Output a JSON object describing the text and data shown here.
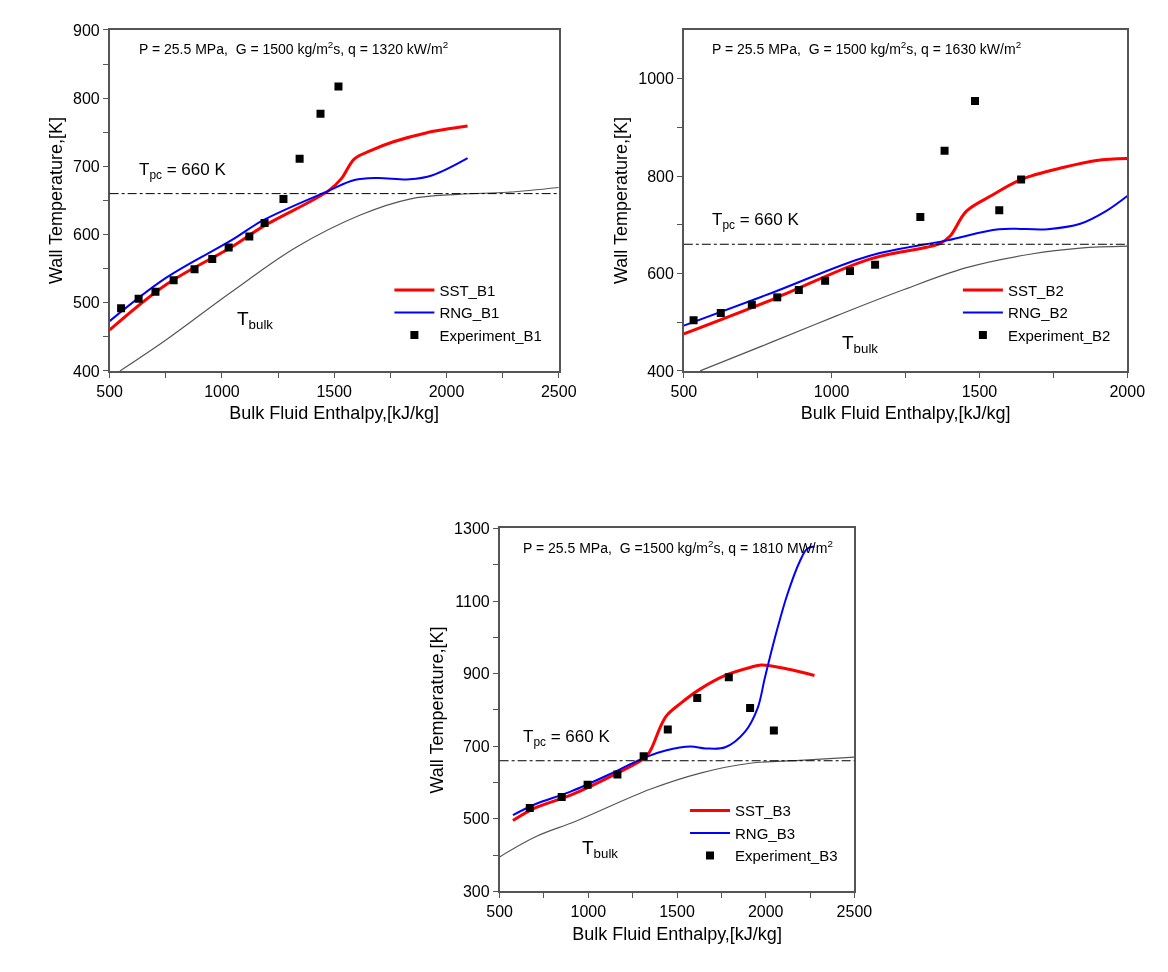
{
  "chart_data": [
    {
      "type": "line",
      "xlabel": "Bulk Fluid Enthalpy,[kJ/kg]",
      "ylabel": "Wall Temperature,[K]",
      "xlim": [
        500,
        2500
      ],
      "ylim": [
        400,
        900
      ],
      "xticks": [
        500,
        {
          "value": 750,
          "label": null
        },
        1000,
        {
          "value": 1250,
          "label": null
        },
        1500,
        {
          "value": 1750,
          "label": null
        },
        2000,
        {
          "value": 2250,
          "label": null
        },
        2500
      ],
      "yticks": [
        400,
        {
          "value": 450,
          "label": null
        },
        500,
        {
          "value": 550,
          "label": null
        },
        600,
        {
          "value": 650,
          "label": null
        },
        700,
        {
          "value": 750,
          "label": null
        },
        800,
        {
          "value": 850,
          "label": null
        },
        900
      ],
      "legend": "bottom right",
      "annotations": [
        "P = 25.5 MPa,  G = 1500 kg/m$^{2}$s, q = 1320 kW/m$^{2}$"
      ],
      "ref_lines": [
        {
          "axis": "y",
          "value": 660,
          "label": "T$_{pc}$ = 660 K",
          "color": "#000000",
          "line_style": "dashdot"
        }
      ],
      "series": [
        {
          "name": "Experiment_B1",
          "type": "scatter",
          "marker": "square",
          "color": "#000000",
          "x": [
            551,
            629,
            704,
            785,
            878,
            957,
            1030,
            1122,
            1190,
            1274,
            1346,
            1439,
            1519
          ],
          "values": [
            492,
            506,
            516,
            533,
            549,
            564,
            581,
            597,
            617,
            652,
            711,
            777,
            817
          ]
        },
        {
          "name": "SST_B1",
          "marker": "none",
          "color": "#ff0000",
          "x": [
            500,
            749,
            1039,
            1184,
            1474,
            1532,
            1590,
            1662,
            1764,
            1909,
            2094
          ],
          "values": [
            460,
            526,
            581,
            612,
            664,
            682,
            711,
            723,
            736,
            749,
            759
          ]
        },
        {
          "name": "RNG_B1",
          "marker": "none",
          "color": "#0000ff",
          "x": [
            500,
            749,
            1039,
            1184,
            1474,
            1590,
            1691,
            1836,
            1938,
            2094
          ],
          "values": [
            473,
            536,
            591,
            621,
            664,
            680,
            683,
            681,
            687,
            712
          ]
        },
        {
          "name": "T$_{bulk}$",
          "marker": "none",
          "color": "#555555",
          "x": [
            546,
            749,
            1039,
            1329,
            1619,
            1836,
            2054,
            2271,
            2500
          ],
          "values": [
            400,
            445,
            515,
            581,
            629,
            652,
            659,
            662,
            669
          ]
        }
      ]
    },
    {
      "type": "line",
      "xlabel": "Bulk Fluid Enthalpy,[kJ/kg]",
      "ylabel": "Wall Temperature,[K]",
      "xlim": [
        500,
        2000
      ],
      "ylim": [
        400,
        1100
      ],
      "xticks": [
        500,
        {
          "value": 750,
          "label": null
        },
        1000,
        {
          "value": 1250,
          "label": null
        },
        1500,
        {
          "value": 1750,
          "label": null
        },
        2000
      ],
      "yticks": [
        400,
        {
          "value": 500,
          "label": null
        },
        600,
        {
          "value": 700,
          "label": null
        },
        800,
        {
          "value": 900,
          "label": null
        },
        1000
      ],
      "legend": "bottom right",
      "annotations": [
        "P = 25.5 MPa,  G = 1500 kg/m$^{2}$s, q = 1630 kW/m$^{2}$"
      ],
      "ref_lines": [
        {
          "axis": "y",
          "value": 660,
          "label": "T$_{pc}$ = 660 K",
          "color": "#000000",
          "line_style": "dashdot"
        }
      ],
      "series": [
        {
          "name": "Experiment_B2",
          "type": "scatter",
          "marker": "square",
          "color": "#000000",
          "x": [
            533,
            625,
            730,
            816,
            889,
            978,
            1062,
            1147,
            1300,
            1382,
            1485,
            1567,
            1641
          ],
          "values": [
            504,
            519,
            536,
            551,
            566,
            585,
            605,
            618,
            716,
            852,
            954,
            730,
            793
          ]
        },
        {
          "name": "SST_B2",
          "marker": "none",
          "color": "#ff0000",
          "x": [
            500,
            797,
            1126,
            1368,
            1401,
            1456,
            1544,
            1641,
            1786,
            1896,
            2000
          ],
          "values": [
            476,
            546,
            629,
            662,
            677,
            728,
            761,
            793,
            818,
            832,
            836
          ]
        },
        {
          "name": "RNG_B2",
          "marker": "none",
          "color": "#0000ff",
          "x": [
            500,
            797,
            1126,
            1390,
            1566,
            1731,
            1841,
            1928,
            2000
          ],
          "values": [
            493,
            560,
            636,
            668,
            691,
            691,
            702,
            728,
            759
          ]
        },
        {
          "name": "T$_{bulk}$",
          "marker": "none",
          "color": "#555555",
          "x": [
            555,
            797,
            1016,
            1236,
            1456,
            1676,
            1841,
            2000
          ],
          "values": [
            400,
            459,
            513,
            565,
            612,
            640,
            652,
            656
          ]
        }
      ]
    },
    {
      "type": "line",
      "xlabel": "Bulk Fluid Enthalpy,[kJ/kg]",
      "ylabel": "Wall Temperature,[K]",
      "xlim": [
        500,
        2500
      ],
      "ylim": [
        300,
        1300
      ],
      "xticks": [
        500,
        {
          "value": 750,
          "label": null
        },
        1000,
        {
          "value": 1250,
          "label": null
        },
        1500,
        {
          "value": 1750,
          "label": null
        },
        2000,
        {
          "value": 2250,
          "label": null
        },
        2500
      ],
      "yticks": [
        300,
        {
          "value": 400,
          "label": null
        },
        500,
        {
          "value": 600,
          "label": null
        },
        700,
        {
          "value": 800,
          "label": null
        },
        900,
        {
          "value": 1000,
          "label": null
        },
        1100,
        {
          "value": 1200,
          "label": null
        },
        1300
      ],
      "legend": "bottom right",
      "annotations": [
        "P = 25.5 MPa,  G =1500 kg/m$^{2}$s, q = 1810 MW/m$^{2}$"
      ],
      "ref_lines": [
        {
          "axis": "y",
          "value": 660,
          "label": "T$_{pc}$ = 660 K",
          "color": "#000000",
          "line_style": "dashdot"
        }
      ],
      "series": [
        {
          "name": "Experiment_B3",
          "type": "scatter",
          "marker": "square",
          "color": "#000000",
          "x": [
            670,
            850,
            996,
            1164,
            1312,
            1448,
            1614,
            1792,
            1912,
            2046
          ],
          "values": [
            530,
            560,
            594,
            622,
            672,
            746,
            833,
            890,
            805,
            743
          ]
        },
        {
          "name": "SST_B3",
          "marker": "none",
          "color": "#ff0000",
          "x": [
            575,
            700,
            900,
            1143,
            1324,
            1352,
            1436,
            1520,
            1632,
            1772,
            1912,
            1975,
            2122,
            2275
          ],
          "values": [
            495,
            530,
            565,
            621,
            670,
            690,
            781,
            818,
            858,
            895,
            917,
            924,
            913,
            895
          ]
        },
        {
          "name": "RNG_B3",
          "marker": "none",
          "color": "#0000ff",
          "x": [
            575,
            700,
            900,
            1143,
            1324,
            1436,
            1576,
            1660,
            1772,
            1884,
            1954,
            1996,
            2052,
            2122,
            2192,
            2234,
            2275
          ],
          "values": [
            510,
            540,
            575,
            628,
            670,
            688,
            699,
            694,
            697,
            740,
            804,
            890,
            999,
            1118,
            1209,
            1244,
            1250
          ]
        },
        {
          "name": "T$_{bulk}$",
          "marker": "none",
          "color": "#555555",
          "x": [
            500,
            700,
            933,
            1352,
            1632,
            1912,
            2192,
            2500
          ],
          "values": [
            395,
            450,
            494,
            582,
            626,
            653,
            661,
            670
          ]
        }
      ]
    }
  ]
}
